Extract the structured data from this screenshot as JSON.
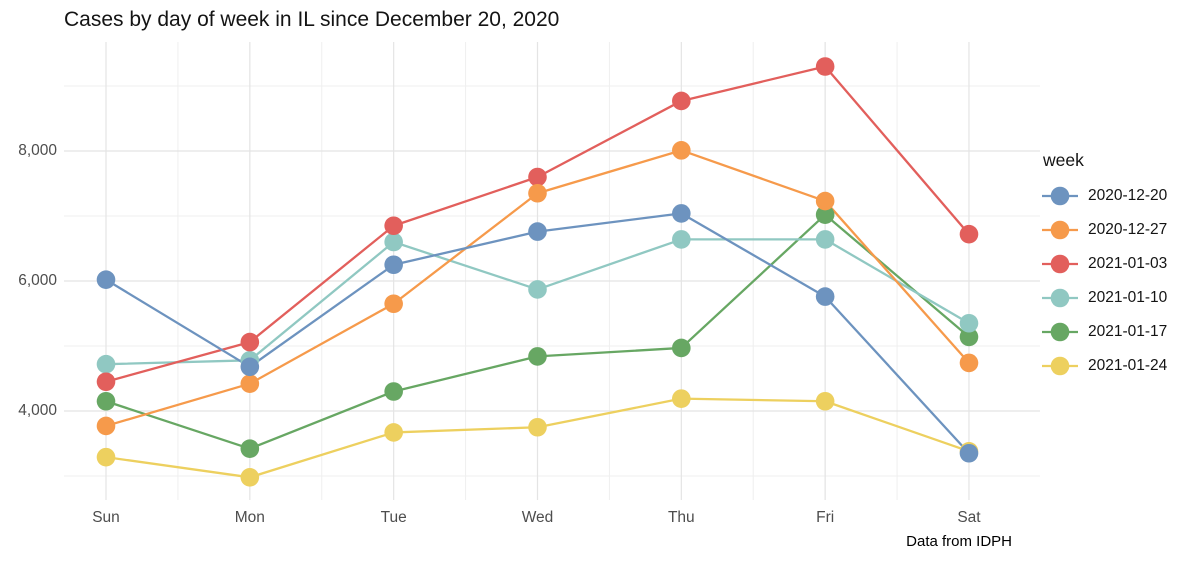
{
  "chart_data": {
    "type": "line",
    "title": "Cases by day of week in IL since December 20, 2020",
    "caption": "Data from IDPH",
    "legend_title": "week",
    "legend_position": "right",
    "grid": "on",
    "xlabel": "",
    "ylabel": "",
    "categories": [
      "Sun",
      "Mon",
      "Tue",
      "Wed",
      "Thu",
      "Fri",
      "Sat"
    ],
    "yticks": [
      {
        "value": 4000,
        "label": "4,000"
      },
      {
        "value": 6000,
        "label": "6,000"
      },
      {
        "value": 8000,
        "label": "8,000"
      }
    ],
    "yticks_minor": [
      3000,
      5000,
      7000,
      9000
    ],
    "ylim": [
      2700,
      9600
    ],
    "series": [
      {
        "name": "2020-12-20",
        "color": "#6d93bf",
        "values": [
          6020,
          4680,
          6250,
          6760,
          7040,
          5760,
          3350
        ]
      },
      {
        "name": "2020-12-27",
        "color": "#f69a4b",
        "values": [
          3770,
          4420,
          5650,
          7350,
          8010,
          7230,
          4740
        ]
      },
      {
        "name": "2021-01-03",
        "color": "#e25f5c",
        "values": [
          4450,
          5060,
          6850,
          7600,
          8770,
          9300,
          6720
        ]
      },
      {
        "name": "2021-01-10",
        "color": "#90c8c2",
        "values": [
          4720,
          4780,
          6600,
          5870,
          6640,
          6640,
          5350
        ]
      },
      {
        "name": "2021-01-17",
        "color": "#67a763",
        "values": [
          4150,
          3420,
          4300,
          4840,
          4970,
          7020,
          5140
        ]
      },
      {
        "name": "2021-01-24",
        "color": "#edd05f",
        "values": [
          3290,
          2980,
          3670,
          3750,
          4190,
          4150,
          3380
        ]
      }
    ],
    "colors": {
      "grid_major": "#e4e4e4",
      "grid_minor": "#efefef",
      "axis_text": "#4d4d4d",
      "text": "#141414"
    }
  }
}
